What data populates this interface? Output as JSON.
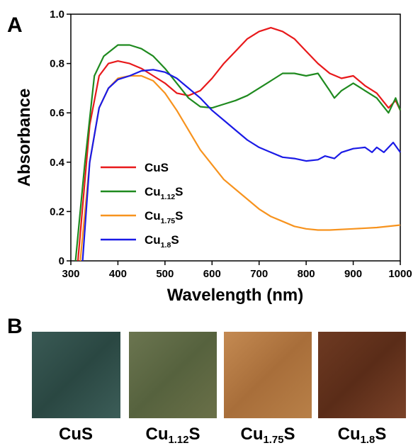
{
  "panel_labels": [
    "A",
    "B"
  ],
  "photo_labels": [
    "CuS",
    "Cu1.12S",
    "Cu1.75S",
    "Cu1.8S"
  ],
  "chart_data": {
    "type": "line",
    "x_label": "Wavelength (nm)",
    "y_label": "Absorbance",
    "xlim": [
      300,
      1000
    ],
    "xticks": [
      300,
      400,
      500,
      600,
      700,
      800,
      900,
      1000
    ],
    "ylim": [
      0,
      1
    ],
    "yticks": [
      0,
      0.2,
      0.4,
      0.6,
      0.8,
      {
        "value": 1,
        "label": "1.0"
      }
    ],
    "grid": false,
    "legend": "lower left",
    "series": [
      {
        "name": "CuS",
        "color": "#e8191b",
        "x": [
          315,
          340,
          360,
          380,
          400,
          425,
          450,
          475,
          500,
          525,
          550,
          575,
          600,
          625,
          650,
          675,
          700,
          725,
          750,
          775,
          800,
          825,
          850,
          875,
          900,
          925,
          950,
          975,
          990,
          1000
        ],
        "values": [
          0,
          0.55,
          0.75,
          0.8,
          0.81,
          0.8,
          0.78,
          0.75,
          0.72,
          0.68,
          0.67,
          0.69,
          0.74,
          0.8,
          0.85,
          0.9,
          0.93,
          0.945,
          0.93,
          0.9,
          0.85,
          0.8,
          0.76,
          0.74,
          0.75,
          0.71,
          0.68,
          0.62,
          0.65,
          0.61
        ]
      },
      {
        "name": "Cu1.12S",
        "color": "#1f8a1f",
        "x": [
          310,
          330,
          350,
          370,
          400,
          425,
          450,
          475,
          500,
          525,
          550,
          575,
          600,
          625,
          650,
          675,
          700,
          725,
          750,
          775,
          800,
          825,
          850,
          860,
          875,
          900,
          925,
          950,
          975,
          990,
          1000
        ],
        "values": [
          0,
          0.4,
          0.75,
          0.83,
          0.875,
          0.875,
          0.86,
          0.83,
          0.78,
          0.72,
          0.66,
          0.625,
          0.62,
          0.635,
          0.65,
          0.67,
          0.7,
          0.73,
          0.76,
          0.76,
          0.75,
          0.76,
          0.69,
          0.66,
          0.69,
          0.72,
          0.69,
          0.66,
          0.6,
          0.66,
          0.61
        ]
      },
      {
        "name": "Cu1.75S",
        "color": "#f7931e",
        "x": [
          320,
          340,
          360,
          380,
          400,
          425,
          450,
          475,
          500,
          525,
          550,
          575,
          600,
          625,
          650,
          675,
          700,
          725,
          750,
          775,
          800,
          825,
          850,
          900,
          950,
          1000
        ],
        "values": [
          0,
          0.4,
          0.62,
          0.7,
          0.74,
          0.75,
          0.75,
          0.73,
          0.68,
          0.61,
          0.53,
          0.45,
          0.39,
          0.33,
          0.29,
          0.25,
          0.21,
          0.18,
          0.16,
          0.14,
          0.13,
          0.125,
          0.125,
          0.13,
          0.135,
          0.145
        ]
      },
      {
        "name": "Cu1.8S",
        "color": "#1a1ae6",
        "x": [
          325,
          340,
          360,
          380,
          400,
          425,
          450,
          475,
          500,
          525,
          550,
          575,
          600,
          625,
          650,
          675,
          700,
          725,
          750,
          775,
          800,
          825,
          840,
          860,
          875,
          900,
          925,
          940,
          950,
          965,
          985,
          1000
        ],
        "values": [
          0,
          0.4,
          0.62,
          0.7,
          0.735,
          0.75,
          0.77,
          0.775,
          0.765,
          0.74,
          0.7,
          0.66,
          0.61,
          0.57,
          0.53,
          0.49,
          0.46,
          0.44,
          0.42,
          0.415,
          0.405,
          0.41,
          0.425,
          0.415,
          0.44,
          0.455,
          0.46,
          0.44,
          0.46,
          0.44,
          0.48,
          0.44
        ]
      }
    ]
  }
}
